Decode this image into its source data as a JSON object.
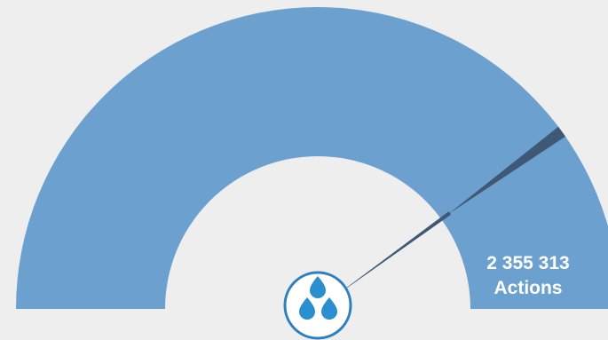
{
  "chart_data": {
    "type": "gauge",
    "value": 2355313,
    "value_label": "2 355 313",
    "unit_label": "Actions",
    "fill_fraction": 0.8,
    "colors": {
      "background": "#eeeeee",
      "band": "#6ca0cf",
      "needle": "#3f5876",
      "logo_ring": "#2f7fc0",
      "logo_drop": "#2b8fcf"
    }
  },
  "icons": {
    "logo": "water-drops-logo-icon"
  }
}
